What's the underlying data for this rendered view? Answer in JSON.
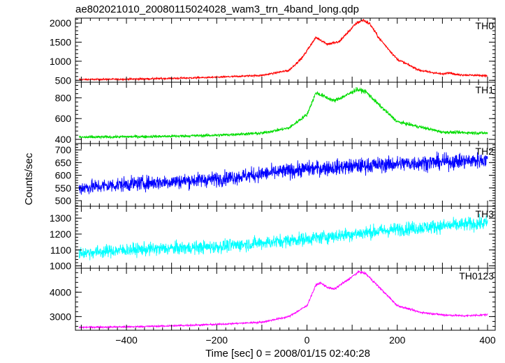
{
  "chart_data": {
    "type": "line",
    "title": "ae802021010_20080115024028_wam3_trn_4band_long.qdp",
    "xlabel": "Time [sec] 0 = 2008/01/15 02:40:28",
    "ylabel": "Counts/sec",
    "xlim": [
      -513,
      417
    ],
    "xticks": [
      -400,
      -200,
      0,
      200,
      400
    ],
    "grid": false,
    "panels": [
      {
        "name": "TH0",
        "color": "#ff0000",
        "ylim": [
          450,
          2130
        ],
        "yticks": [
          500,
          1000,
          1500,
          2000
        ],
        "noise": 22,
        "profile": [
          [
            -505,
            520
          ],
          [
            -400,
            530
          ],
          [
            -300,
            550
          ],
          [
            -200,
            580
          ],
          [
            -100,
            630
          ],
          [
            -40,
            760
          ],
          [
            -10,
            1100
          ],
          [
            10,
            1460
          ],
          [
            20,
            1620
          ],
          [
            30,
            1560
          ],
          [
            45,
            1450
          ],
          [
            70,
            1500
          ],
          [
            90,
            1750
          ],
          [
            110,
            2000
          ],
          [
            125,
            2080
          ],
          [
            140,
            1970
          ],
          [
            160,
            1600
          ],
          [
            200,
            1050
          ],
          [
            250,
            760
          ],
          [
            300,
            660
          ],
          [
            315,
            710
          ],
          [
            330,
            650
          ],
          [
            400,
            620
          ]
        ]
      },
      {
        "name": "TH1",
        "color": "#00dd00",
        "ylim": [
          360,
          950
        ],
        "yticks": [
          400,
          600,
          800
        ],
        "noise": 14,
        "profile": [
          [
            -505,
            420
          ],
          [
            -300,
            430
          ],
          [
            -200,
            440
          ],
          [
            -100,
            460
          ],
          [
            -40,
            510
          ],
          [
            0,
            640
          ],
          [
            20,
            850
          ],
          [
            40,
            810
          ],
          [
            60,
            770
          ],
          [
            90,
            830
          ],
          [
            110,
            880
          ],
          [
            130,
            860
          ],
          [
            160,
            730
          ],
          [
            200,
            570
          ],
          [
            300,
            470
          ],
          [
            400,
            460
          ]
        ]
      },
      {
        "name": "TH2",
        "color": "#0000ff",
        "ylim": [
          478,
          725
        ],
        "yticks": [
          500,
          550,
          600,
          650,
          700
        ],
        "noise": 28,
        "profile": [
          [
            -505,
            550
          ],
          [
            -400,
            565
          ],
          [
            -200,
            585
          ],
          [
            0,
            625
          ],
          [
            200,
            645
          ],
          [
            400,
            660
          ]
        ]
      },
      {
        "name": "TH3",
        "color": "#00ffff",
        "ylim": [
          985,
          1375
        ],
        "yticks": [
          1000,
          1100,
          1200,
          1300
        ],
        "noise": 40,
        "profile": [
          [
            -505,
            1080
          ],
          [
            -400,
            1100
          ],
          [
            -200,
            1120
          ],
          [
            0,
            1170
          ],
          [
            200,
            1230
          ],
          [
            400,
            1270
          ]
        ]
      },
      {
        "name": "TH0123",
        "color": "#ff00ff",
        "ylim": [
          2440,
          4980
        ],
        "yticks": [
          3000,
          4000
        ],
        "noise": 35,
        "profile": [
          [
            -505,
            2560
          ],
          [
            -400,
            2580
          ],
          [
            -300,
            2620
          ],
          [
            -200,
            2680
          ],
          [
            -100,
            2770
          ],
          [
            -40,
            3000
          ],
          [
            0,
            3450
          ],
          [
            20,
            4300
          ],
          [
            30,
            4380
          ],
          [
            45,
            4200
          ],
          [
            60,
            4120
          ],
          [
            90,
            4500
          ],
          [
            115,
            4840
          ],
          [
            130,
            4760
          ],
          [
            160,
            4200
          ],
          [
            200,
            3450
          ],
          [
            250,
            3180
          ],
          [
            300,
            3070
          ],
          [
            350,
            3030
          ],
          [
            400,
            3080
          ]
        ]
      }
    ]
  }
}
